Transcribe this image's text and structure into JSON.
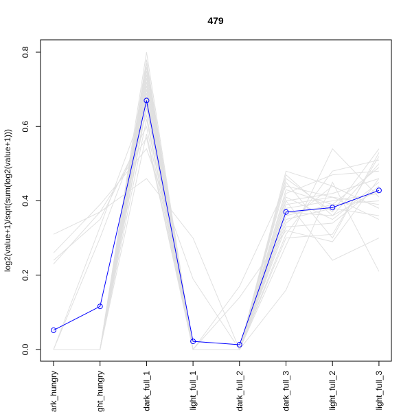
{
  "chart_data": {
    "type": "line",
    "title": "479",
    "xlabel": "",
    "ylabel": "log2(value+1)/sqrt(sum(log2(value+1)))",
    "categories": [
      "dark_hungry",
      "light_hungry",
      "dark_full_1",
      "light_full_1",
      "dark_full_2",
      "dark_full_3",
      "light_full_2",
      "light_full_3"
    ],
    "ylim": [
      0.0,
      0.8
    ],
    "yticks": [
      0.0,
      0.2,
      0.4,
      0.6,
      0.8
    ],
    "yticklabels": [
      "0.0",
      "0.2",
      "0.4",
      "0.6",
      "0.8"
    ],
    "grid": false,
    "highlight_series": {
      "values": [
        0.052,
        0.116,
        0.67,
        0.022,
        0.013,
        0.37,
        0.382,
        0.428
      ],
      "color": "#0000ff",
      "marker": "open-circle"
    },
    "background_series": {
      "color": "#e0e0e0",
      "series": [
        [
          0.0,
          0.0,
          0.76,
          0.0,
          0.0,
          0.38,
          0.4,
          0.42
        ],
        [
          0.0,
          0.0,
          0.72,
          0.0,
          0.0,
          0.4,
          0.42,
          0.46
        ],
        [
          0.0,
          0.0,
          0.78,
          0.0,
          0.0,
          0.36,
          0.39,
          0.4
        ],
        [
          0.0,
          0.0,
          0.7,
          0.0,
          0.0,
          0.47,
          0.36,
          0.5
        ],
        [
          0.0,
          0.0,
          0.74,
          0.0,
          0.0,
          0.33,
          0.34,
          0.44
        ],
        [
          0.0,
          0.0,
          0.68,
          0.0,
          0.0,
          0.48,
          0.44,
          0.38
        ],
        [
          0.0,
          0.0,
          0.8,
          0.0,
          0.0,
          0.3,
          0.31,
          0.52
        ],
        [
          0.0,
          0.0,
          0.66,
          0.0,
          0.0,
          0.42,
          0.47,
          0.48
        ],
        [
          0.0,
          0.0,
          0.73,
          0.0,
          0.0,
          0.35,
          0.38,
          0.36
        ],
        [
          0.0,
          0.0,
          0.62,
          0.0,
          0.0,
          0.4,
          0.24,
          0.3
        ],
        [
          0.0,
          0.0,
          0.58,
          0.0,
          0.0,
          0.28,
          0.54,
          0.41
        ],
        [
          0.0,
          0.0,
          0.69,
          0.0,
          0.0,
          0.45,
          0.3,
          0.53
        ],
        [
          0.0,
          0.0,
          0.75,
          0.0,
          0.0,
          0.39,
          0.41,
          0.39
        ],
        [
          0.0,
          0.0,
          0.71,
          0.0,
          0.0,
          0.16,
          0.45,
          0.21
        ],
        [
          0.0,
          0.0,
          0.65,
          0.0,
          0.14,
          0.32,
          0.29,
          0.46
        ],
        [
          0.0,
          0.0,
          0.77,
          0.0,
          0.0,
          0.37,
          0.36,
          0.43
        ],
        [
          0.23,
          0.37,
          0.57,
          0.0,
          0.0,
          0.43,
          0.39,
          0.49
        ],
        [
          0.31,
          0.37,
          0.46,
          0.3,
          0.0,
          0.34,
          0.44,
          0.38
        ],
        [
          0.26,
          0.39,
          0.54,
          0.19,
          0.0,
          0.41,
          0.35,
          0.45
        ],
        [
          0.24,
          0.35,
          0.6,
          0.0,
          0.17,
          0.44,
          0.41,
          0.35
        ],
        [
          0.0,
          0.3,
          0.63,
          0.0,
          0.0,
          0.31,
          0.48,
          0.51
        ],
        [
          0.0,
          0.33,
          0.67,
          0.0,
          0.0,
          0.46,
          0.37,
          0.54
        ]
      ]
    }
  }
}
